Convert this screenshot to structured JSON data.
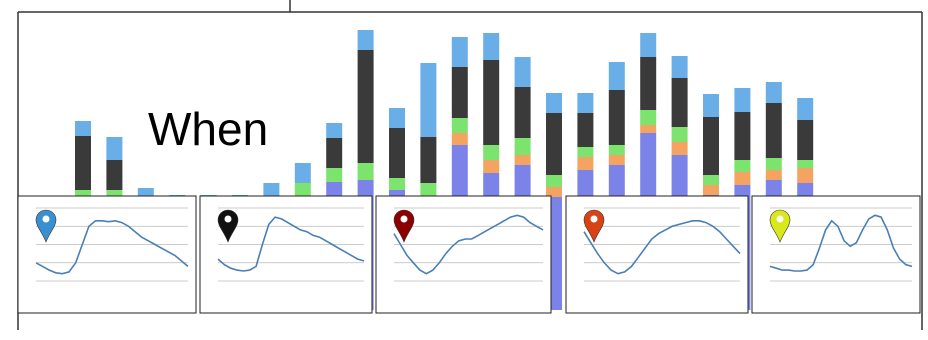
{
  "chart_data": [
    {
      "type": "bar",
      "stacked": true,
      "annotation": "When",
      "ylim": [
        0,
        290
      ],
      "series": [
        {
          "color": "#7b83e8",
          "values": [
            110,
            110,
            110,
            110,
            110,
            110,
            110,
            110,
            128,
            130,
            120,
            113,
            165,
            137,
            145,
            113,
            140,
            145,
            177,
            155,
            115,
            125,
            130,
            127
          ]
        },
        {
          "color": "#f4a460",
          "values": [
            0,
            0,
            0,
            0,
            0,
            0,
            0,
            0,
            0,
            0,
            0,
            0,
            12,
            13,
            10,
            10,
            13,
            10,
            8,
            13,
            10,
            13,
            10,
            15
          ]
        },
        {
          "color": "#7de36f",
          "values": [
            10,
            10,
            0,
            0,
            0,
            0,
            0,
            17,
            14,
            17,
            12,
            14,
            15,
            15,
            17,
            12,
            10,
            10,
            15,
            15,
            10,
            12,
            12,
            8
          ]
        },
        {
          "color": "#3a3a3a",
          "values": [
            54,
            30,
            0,
            0,
            0,
            0,
            0,
            0,
            30,
            113,
            50,
            46,
            51,
            85,
            51,
            62,
            34,
            55,
            53,
            49,
            58,
            48,
            55,
            40
          ]
        },
        {
          "color": "#6aaee8",
          "values": [
            15,
            23,
            12,
            5,
            5,
            5,
            17,
            20,
            15,
            20,
            20,
            74,
            30,
            27,
            30,
            20,
            20,
            28,
            24,
            22,
            23,
            24,
            21,
            22
          ]
        }
      ]
    },
    {
      "type": "line",
      "ylim": [
        0,
        4
      ],
      "yticks": [
        0,
        1,
        2,
        3,
        4
      ],
      "grid": true,
      "series": [
        {
          "color": "#4a7fb5",
          "values": [
            1.0,
            0.8,
            0.6,
            0.45,
            0.4,
            0.5,
            1.0,
            2.0,
            3.0,
            3.3,
            3.3,
            3.25,
            3.3,
            3.2,
            3.0,
            2.7,
            2.4,
            2.2,
            2.0,
            1.8,
            1.6,
            1.4,
            1.1,
            0.8
          ]
        }
      ]
    },
    {
      "type": "line",
      "ylim": [
        0,
        4
      ],
      "yticks": [
        0,
        1,
        2,
        3,
        4
      ],
      "grid": true,
      "series": [
        {
          "color": "#4a7fb5",
          "values": [
            1.2,
            0.9,
            0.7,
            0.6,
            0.55,
            0.6,
            0.8,
            2.0,
            3.1,
            3.5,
            3.4,
            3.2,
            3.0,
            2.8,
            2.7,
            2.5,
            2.4,
            2.2,
            2.0,
            1.8,
            1.6,
            1.4,
            1.2,
            1.1
          ]
        }
      ]
    },
    {
      "type": "line",
      "ylim": [
        0,
        4
      ],
      "yticks": [
        0,
        1,
        2,
        3,
        4
      ],
      "grid": true,
      "series": [
        {
          "color": "#4a7fb5",
          "values": [
            2.6,
            2.0,
            1.4,
            1.0,
            0.6,
            0.4,
            0.6,
            1.0,
            1.5,
            1.9,
            2.2,
            2.3,
            2.3,
            2.5,
            2.7,
            2.9,
            3.1,
            3.3,
            3.5,
            3.6,
            3.5,
            3.2,
            3.0,
            2.8
          ]
        }
      ]
    },
    {
      "type": "line",
      "ylim": [
        0,
        4
      ],
      "yticks": [
        0,
        1,
        2,
        3,
        4
      ],
      "grid": true,
      "series": [
        {
          "color": "#4a7fb5",
          "values": [
            2.7,
            2.1,
            1.5,
            1.0,
            0.6,
            0.4,
            0.5,
            0.8,
            1.3,
            1.8,
            2.3,
            2.6,
            2.8,
            3.0,
            3.1,
            3.2,
            3.3,
            3.3,
            3.2,
            3.0,
            2.7,
            2.3,
            1.9,
            1.5
          ]
        }
      ]
    },
    {
      "type": "line",
      "ylim": [
        0,
        4
      ],
      "yticks": [
        0,
        1,
        2,
        3,
        4
      ],
      "grid": true,
      "series": [
        {
          "color": "#4a7fb5",
          "values": [
            0.8,
            0.7,
            0.6,
            0.6,
            0.55,
            0.55,
            0.6,
            0.9,
            1.8,
            2.8,
            3.3,
            3.0,
            2.2,
            1.9,
            2.1,
            2.8,
            3.4,
            3.6,
            3.5,
            2.8,
            1.8,
            1.2,
            0.9,
            0.8
          ]
        }
      ]
    }
  ]
}
